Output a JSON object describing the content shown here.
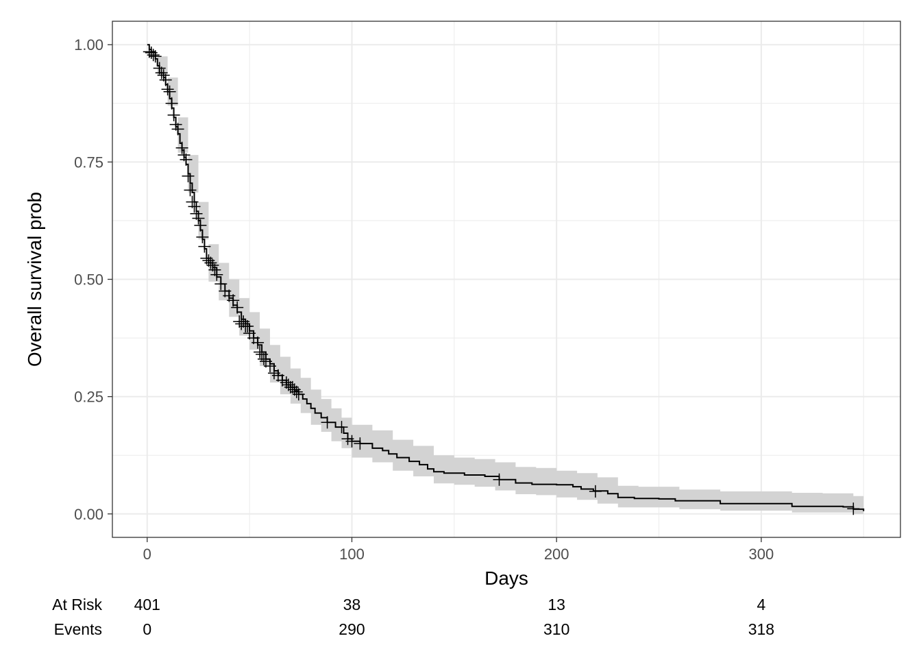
{
  "chart_data": {
    "type": "line",
    "title": "",
    "xlabel": "Days",
    "ylabel": "Overall survival prob",
    "xlim": [
      -17,
      368
    ],
    "ylim": [
      -0.05,
      1.05
    ],
    "x_ticks": [
      0,
      100,
      200,
      300
    ],
    "x_tick_labels": [
      "0",
      "100",
      "200",
      "300"
    ],
    "y_ticks": [
      0,
      0.25,
      0.5,
      0.75,
      1
    ],
    "y_tick_labels": [
      "0.00",
      "0.25",
      "0.50",
      "0.75",
      "1.00"
    ],
    "grid": true,
    "legend": "none",
    "colors": {
      "line": "#000000",
      "ci_fill": "#d3d3d3",
      "grid": "#ebebeb",
      "border": "#333333"
    },
    "series": [
      {
        "kind": "survival_step",
        "points": [
          [
            0,
            1.0
          ],
          [
            1,
            0.99
          ],
          [
            2,
            0.985
          ],
          [
            4,
            0.97
          ],
          [
            5,
            0.955
          ],
          [
            6,
            0.94
          ],
          [
            8,
            0.93
          ],
          [
            9,
            0.915
          ],
          [
            10,
            0.9
          ],
          [
            11,
            0.885
          ],
          [
            12,
            0.865
          ],
          [
            13,
            0.845
          ],
          [
            14,
            0.825
          ],
          [
            15,
            0.81
          ],
          [
            16,
            0.79
          ],
          [
            17,
            0.775
          ],
          [
            18,
            0.76
          ],
          [
            19,
            0.745
          ],
          [
            20,
            0.725
          ],
          [
            21,
            0.705
          ],
          [
            22,
            0.685
          ],
          [
            23,
            0.665
          ],
          [
            24,
            0.645
          ],
          [
            25,
            0.625
          ],
          [
            26,
            0.605
          ],
          [
            27,
            0.585
          ],
          [
            28,
            0.565
          ],
          [
            29,
            0.545
          ],
          [
            30,
            0.535
          ],
          [
            32,
            0.525
          ],
          [
            34,
            0.505
          ],
          [
            36,
            0.49
          ],
          [
            38,
            0.475
          ],
          [
            40,
            0.46
          ],
          [
            42,
            0.445
          ],
          [
            44,
            0.43
          ],
          [
            46,
            0.415
          ],
          [
            48,
            0.405
          ],
          [
            50,
            0.39
          ],
          [
            52,
            0.375
          ],
          [
            54,
            0.36
          ],
          [
            56,
            0.345
          ],
          [
            58,
            0.33
          ],
          [
            60,
            0.32
          ],
          [
            62,
            0.305
          ],
          [
            64,
            0.295
          ],
          [
            66,
            0.285
          ],
          [
            68,
            0.275
          ],
          [
            70,
            0.27
          ],
          [
            72,
            0.262
          ],
          [
            74,
            0.255
          ],
          [
            76,
            0.245
          ],
          [
            78,
            0.235
          ],
          [
            80,
            0.225
          ],
          [
            82,
            0.215
          ],
          [
            85,
            0.205
          ],
          [
            88,
            0.195
          ],
          [
            92,
            0.185
          ],
          [
            96,
            0.172
          ],
          [
            98,
            0.16
          ],
          [
            100,
            0.155
          ],
          [
            104,
            0.15
          ],
          [
            110,
            0.14
          ],
          [
            115,
            0.135
          ],
          [
            118,
            0.128
          ],
          [
            122,
            0.12
          ],
          [
            128,
            0.112
          ],
          [
            133,
            0.105
          ],
          [
            137,
            0.096
          ],
          [
            140,
            0.09
          ],
          [
            145,
            0.087
          ],
          [
            155,
            0.083
          ],
          [
            165,
            0.08
          ],
          [
            172,
            0.073
          ],
          [
            180,
            0.066
          ],
          [
            188,
            0.063
          ],
          [
            200,
            0.062
          ],
          [
            208,
            0.058
          ],
          [
            212,
            0.053
          ],
          [
            218,
            0.049
          ],
          [
            225,
            0.043
          ],
          [
            230,
            0.035
          ],
          [
            238,
            0.033
          ],
          [
            250,
            0.032
          ],
          [
            258,
            0.028
          ],
          [
            270,
            0.028
          ],
          [
            280,
            0.022
          ],
          [
            300,
            0.022
          ],
          [
            315,
            0.016
          ],
          [
            328,
            0.016
          ],
          [
            340,
            0.015
          ],
          [
            345,
            0.01
          ],
          [
            350,
            0.006
          ]
        ],
        "ci_band": [
          [
            0,
            1.0,
            1.0
          ],
          [
            5,
            0.935,
            0.975
          ],
          [
            10,
            0.87,
            0.93
          ],
          [
            15,
            0.77,
            0.845
          ],
          [
            20,
            0.685,
            0.765
          ],
          [
            25,
            0.585,
            0.665
          ],
          [
            30,
            0.495,
            0.575
          ],
          [
            35,
            0.455,
            0.535
          ],
          [
            40,
            0.42,
            0.5
          ],
          [
            45,
            0.38,
            0.46
          ],
          [
            50,
            0.35,
            0.43
          ],
          [
            55,
            0.315,
            0.395
          ],
          [
            60,
            0.28,
            0.36
          ],
          [
            65,
            0.255,
            0.335
          ],
          [
            70,
            0.235,
            0.31
          ],
          [
            75,
            0.215,
            0.29
          ],
          [
            80,
            0.19,
            0.265
          ],
          [
            85,
            0.175,
            0.245
          ],
          [
            90,
            0.155,
            0.225
          ],
          [
            95,
            0.14,
            0.205
          ],
          [
            100,
            0.12,
            0.19
          ],
          [
            110,
            0.11,
            0.178
          ],
          [
            120,
            0.092,
            0.158
          ],
          [
            130,
            0.08,
            0.145
          ],
          [
            140,
            0.065,
            0.125
          ],
          [
            150,
            0.062,
            0.12
          ],
          [
            160,
            0.058,
            0.117
          ],
          [
            170,
            0.05,
            0.11
          ],
          [
            180,
            0.042,
            0.1
          ],
          [
            190,
            0.04,
            0.098
          ],
          [
            200,
            0.035,
            0.092
          ],
          [
            210,
            0.03,
            0.087
          ],
          [
            220,
            0.022,
            0.078
          ],
          [
            230,
            0.014,
            0.06
          ],
          [
            240,
            0.014,
            0.058
          ],
          [
            260,
            0.01,
            0.052
          ],
          [
            280,
            0.007,
            0.048
          ],
          [
            300,
            0.007,
            0.048
          ],
          [
            315,
            0.003,
            0.045
          ],
          [
            330,
            0.003,
            0.044
          ],
          [
            345,
            0.0,
            0.038
          ],
          [
            350,
            0.0,
            0.03
          ]
        ],
        "censor_marks": [
          [
            1,
            0.985
          ],
          [
            2,
            0.983
          ],
          [
            3,
            0.978
          ],
          [
            4,
            0.975
          ],
          [
            6,
            0.95
          ],
          [
            7,
            0.94
          ],
          [
            8,
            0.935
          ],
          [
            9,
            0.925
          ],
          [
            10,
            0.905
          ],
          [
            11,
            0.9
          ],
          [
            12,
            0.875
          ],
          [
            13,
            0.85
          ],
          [
            14,
            0.83
          ],
          [
            15,
            0.82
          ],
          [
            17,
            0.78
          ],
          [
            18,
            0.765
          ],
          [
            19,
            0.755
          ],
          [
            20,
            0.72
          ],
          [
            21,
            0.69
          ],
          [
            22,
            0.665
          ],
          [
            23,
            0.655
          ],
          [
            24,
            0.64
          ],
          [
            25,
            0.63
          ],
          [
            26,
            0.615
          ],
          [
            27,
            0.59
          ],
          [
            28,
            0.57
          ],
          [
            29,
            0.545
          ],
          [
            30,
            0.54
          ],
          [
            31,
            0.535
          ],
          [
            32,
            0.53
          ],
          [
            33,
            0.52
          ],
          [
            34,
            0.51
          ],
          [
            36,
            0.49
          ],
          [
            38,
            0.475
          ],
          [
            40,
            0.465
          ],
          [
            42,
            0.455
          ],
          [
            44,
            0.44
          ],
          [
            45,
            0.41
          ],
          [
            46,
            0.405
          ],
          [
            47,
            0.41
          ],
          [
            48,
            0.4
          ],
          [
            49,
            0.4
          ],
          [
            50,
            0.385
          ],
          [
            52,
            0.375
          ],
          [
            54,
            0.365
          ],
          [
            55,
            0.345
          ],
          [
            56,
            0.34
          ],
          [
            57,
            0.33
          ],
          [
            58,
            0.325
          ],
          [
            60,
            0.315
          ],
          [
            62,
            0.3
          ],
          [
            64,
            0.295
          ],
          [
            66,
            0.285
          ],
          [
            68,
            0.28
          ],
          [
            69,
            0.275
          ],
          [
            70,
            0.27
          ],
          [
            71,
            0.27
          ],
          [
            72,
            0.265
          ],
          [
            73,
            0.26
          ],
          [
            74,
            0.255
          ],
          [
            88,
            0.195
          ],
          [
            95,
            0.185
          ],
          [
            98,
            0.16
          ],
          [
            100,
            0.155
          ],
          [
            104,
            0.15
          ],
          [
            172,
            0.073
          ],
          [
            219,
            0.048
          ],
          [
            345,
            0.011
          ]
        ]
      }
    ],
    "risk_table": {
      "rows": [
        {
          "label": "At Risk",
          "values": [
            {
              "x": 0,
              "text": "401"
            },
            {
              "x": 100,
              "text": "38"
            },
            {
              "x": 200,
              "text": "13"
            },
            {
              "x": 300,
              "text": "4"
            }
          ]
        },
        {
          "label": "Events",
          "values": [
            {
              "x": 0,
              "text": "0"
            },
            {
              "x": 100,
              "text": "290"
            },
            {
              "x": 200,
              "text": "310"
            },
            {
              "x": 300,
              "text": "318"
            }
          ]
        }
      ]
    }
  }
}
